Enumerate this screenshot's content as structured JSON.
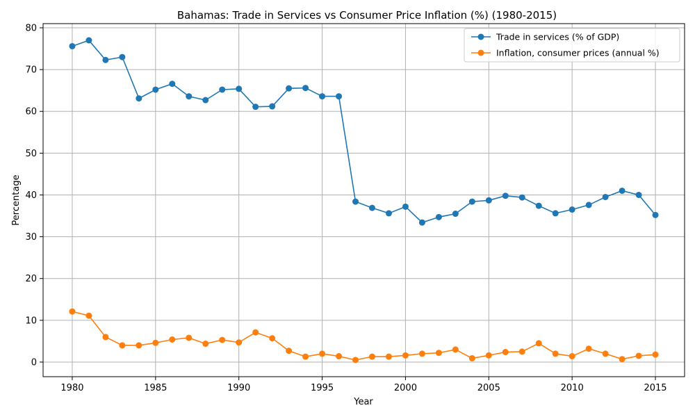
{
  "chart_data": {
    "type": "line",
    "title": "Bahamas: Trade in Services vs Consumer Price Inflation (%) (1980-2015)",
    "xlabel": "Year",
    "ylabel": "Percentage",
    "xlim": [
      1978.25,
      2016.75
    ],
    "ylim": [
      -3.5,
      81
    ],
    "xticks": [
      1980,
      1985,
      1990,
      1995,
      2000,
      2005,
      2010,
      2015
    ],
    "yticks": [
      0,
      10,
      20,
      30,
      40,
      50,
      60,
      70,
      80
    ],
    "grid": true,
    "legend_position": "top-right",
    "x": [
      1980,
      1981,
      1982,
      1983,
      1984,
      1985,
      1986,
      1987,
      1988,
      1989,
      1990,
      1991,
      1992,
      1993,
      1994,
      1995,
      1996,
      1997,
      1998,
      1999,
      2000,
      2001,
      2002,
      2003,
      2004,
      2005,
      2006,
      2007,
      2008,
      2009,
      2010,
      2011,
      2012,
      2013,
      2014,
      2015
    ],
    "series": [
      {
        "name": "Trade in services (% of GDP)",
        "color": "#1f77b4",
        "values": [
          75.6,
          77.0,
          72.3,
          73.0,
          63.1,
          65.2,
          66.6,
          63.6,
          62.7,
          65.2,
          65.4,
          61.1,
          61.2,
          65.5,
          65.6,
          63.6,
          63.6,
          38.4,
          36.9,
          35.6,
          37.2,
          33.4,
          34.7,
          35.5,
          38.4,
          38.7,
          39.8,
          39.4,
          37.4,
          35.6,
          36.5,
          37.6,
          39.5,
          41.0,
          40.0,
          35.2
        ]
      },
      {
        "name": "Inflation, consumer prices (annual %)",
        "color": "#ff7f0e",
        "values": [
          12.1,
          11.1,
          6.0,
          4.0,
          4.0,
          4.6,
          5.4,
          5.8,
          4.4,
          5.3,
          4.7,
          7.1,
          5.7,
          2.7,
          1.3,
          2.0,
          1.4,
          0.5,
          1.3,
          1.3,
          1.6,
          2.0,
          2.2,
          3.0,
          0.9,
          1.6,
          2.4,
          2.5,
          4.5,
          2.0,
          1.4,
          3.2,
          2.0,
          0.7,
          1.5,
          1.8
        ]
      }
    ]
  }
}
